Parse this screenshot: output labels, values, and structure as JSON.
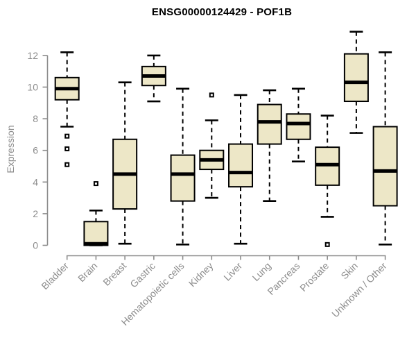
{
  "chart_data": {
    "type": "boxplot",
    "title": "ENSG00000124429 - POF1B",
    "xlabel": "",
    "ylabel": "Expression",
    "ylim": [
      0,
      12
    ],
    "yticks": [
      0,
      2,
      4,
      6,
      8,
      10,
      12
    ],
    "grid": false,
    "legend": false,
    "categories": [
      "Bladder",
      "Brain",
      "Breast",
      "Gastric",
      "Hematopoietic cells",
      "Kidney",
      "Liver",
      "Lung",
      "Pancreas",
      "Prostate",
      "Skin",
      "Unknown / Other"
    ],
    "series": [
      {
        "category": "Bladder",
        "whisker_low": 7.5,
        "q1": 9.2,
        "median": 9.9,
        "q3": 10.6,
        "whisker_high": 12.2,
        "outliers": [
          6.9,
          6.1,
          5.1
        ]
      },
      {
        "category": "Brain",
        "whisker_low": 0.0,
        "q1": 0.0,
        "median": 0.1,
        "q3": 1.5,
        "whisker_high": 2.2,
        "outliers": [
          3.9
        ]
      },
      {
        "category": "Breast",
        "whisker_low": 0.1,
        "q1": 2.3,
        "median": 4.5,
        "q3": 6.7,
        "whisker_high": 10.3,
        "outliers": []
      },
      {
        "category": "Gastric",
        "whisker_low": 9.1,
        "q1": 10.1,
        "median": 10.7,
        "q3": 11.3,
        "whisker_high": 12.0,
        "outliers": []
      },
      {
        "category": "Hematopoietic cells",
        "whisker_low": 0.05,
        "q1": 2.8,
        "median": 4.5,
        "q3": 5.7,
        "whisker_high": 9.9,
        "outliers": []
      },
      {
        "category": "Kidney",
        "whisker_low": 3.0,
        "q1": 4.8,
        "median": 5.4,
        "q3": 6.0,
        "whisker_high": 7.9,
        "outliers": [
          9.5
        ]
      },
      {
        "category": "Liver",
        "whisker_low": 0.1,
        "q1": 3.7,
        "median": 4.6,
        "q3": 6.4,
        "whisker_high": 9.5,
        "outliers": []
      },
      {
        "category": "Lung",
        "whisker_low": 2.8,
        "q1": 6.4,
        "median": 7.8,
        "q3": 8.9,
        "whisker_high": 9.8,
        "outliers": []
      },
      {
        "category": "Pancreas",
        "whisker_low": 5.3,
        "q1": 6.7,
        "median": 7.7,
        "q3": 8.3,
        "whisker_high": 9.9,
        "outliers": []
      },
      {
        "category": "Prostate",
        "whisker_low": 1.8,
        "q1": 3.8,
        "median": 5.1,
        "q3": 6.2,
        "whisker_high": 8.2,
        "outliers": [
          0.05
        ]
      },
      {
        "category": "Skin",
        "whisker_low": 7.1,
        "q1": 9.1,
        "median": 10.3,
        "q3": 12.1,
        "whisker_high": 13.5,
        "outliers": []
      },
      {
        "category": "Unknown / Other",
        "whisker_low": 0.05,
        "q1": 2.5,
        "median": 4.7,
        "q3": 7.5,
        "whisker_high": 12.2,
        "outliers": []
      }
    ],
    "colors": {
      "background": "#ffffff",
      "box_fill": "#ede7c7",
      "box_border": "#000000",
      "median": "#000000",
      "whisker": "#000000",
      "outlier": "#000000",
      "axis": "#8c8c8c",
      "tick_label": "#8c8c8c",
      "category_label": "#8c8c8c",
      "title": "#000000"
    }
  }
}
